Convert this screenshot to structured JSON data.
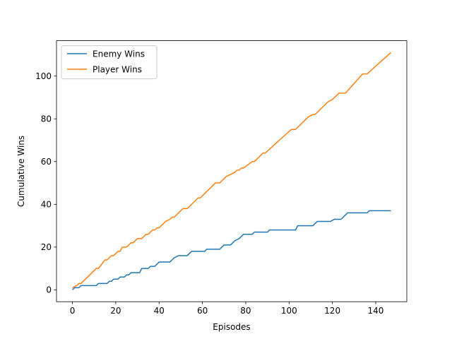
{
  "chart_data": {
    "type": "line",
    "xlabel": "Episodes",
    "ylabel": "Cumulative Wins",
    "xlim": [
      -7.35,
      154.35
    ],
    "ylim": [
      -5.55,
      116.55
    ],
    "xticks": [
      0,
      20,
      40,
      60,
      80,
      100,
      120,
      140
    ],
    "yticks": [
      0,
      20,
      40,
      60,
      80,
      100
    ],
    "grid": false,
    "legend_position": "top-left",
    "series": [
      {
        "name": "Enemy Wins",
        "color": "#1f77b4",
        "points": [
          [
            0,
            0
          ],
          [
            1,
            1
          ],
          [
            3,
            1
          ],
          [
            4,
            2
          ],
          [
            11,
            2
          ],
          [
            12,
            3
          ],
          [
            16,
            3
          ],
          [
            17,
            4
          ],
          [
            18,
            4
          ],
          [
            19,
            5
          ],
          [
            21,
            5
          ],
          [
            22,
            6
          ],
          [
            24,
            6
          ],
          [
            25,
            7
          ],
          [
            26,
            7
          ],
          [
            27,
            8
          ],
          [
            31,
            8
          ],
          [
            32,
            10
          ],
          [
            35,
            10
          ],
          [
            36,
            11
          ],
          [
            38,
            11
          ],
          [
            39,
            12
          ],
          [
            40,
            13
          ],
          [
            45,
            13
          ],
          [
            46,
            14
          ],
          [
            47,
            15
          ],
          [
            49,
            16
          ],
          [
            53,
            16
          ],
          [
            55,
            18
          ],
          [
            61,
            18
          ],
          [
            62,
            19
          ],
          [
            68,
            19
          ],
          [
            70,
            21
          ],
          [
            73,
            21
          ],
          [
            74,
            22
          ],
          [
            75,
            23
          ],
          [
            77,
            24
          ],
          [
            78,
            25
          ],
          [
            79,
            26
          ],
          [
            83,
            26
          ],
          [
            84,
            27
          ],
          [
            90,
            27
          ],
          [
            91,
            28
          ],
          [
            103,
            28
          ],
          [
            104,
            30
          ],
          [
            111,
            30
          ],
          [
            113,
            32
          ],
          [
            119,
            32
          ],
          [
            121,
            33
          ],
          [
            124,
            33
          ],
          [
            126,
            35
          ],
          [
            127,
            36
          ],
          [
            136,
            36
          ],
          [
            137,
            37
          ],
          [
            147,
            37
          ]
        ]
      },
      {
        "name": "Player Wins",
        "color": "#ff7f0e",
        "points": [
          [
            0,
            1
          ],
          [
            2,
            2
          ],
          [
            3,
            3
          ],
          [
            4,
            3
          ],
          [
            11,
            10
          ],
          [
            12,
            10
          ],
          [
            15,
            14
          ],
          [
            16,
            14
          ],
          [
            18,
            16
          ],
          [
            19,
            16
          ],
          [
            21,
            18
          ],
          [
            22,
            18
          ],
          [
            23,
            20
          ],
          [
            25,
            20
          ],
          [
            27,
            22
          ],
          [
            28,
            22
          ],
          [
            30,
            24
          ],
          [
            32,
            24
          ],
          [
            34,
            26
          ],
          [
            35,
            26
          ],
          [
            37,
            28
          ],
          [
            38,
            28
          ],
          [
            39,
            29
          ],
          [
            40,
            29
          ],
          [
            43,
            32
          ],
          [
            45,
            33
          ],
          [
            46,
            34
          ],
          [
            47,
            34
          ],
          [
            51,
            38
          ],
          [
            53,
            38
          ],
          [
            58,
            43
          ],
          [
            59,
            43
          ],
          [
            66,
            50
          ],
          [
            67,
            50
          ],
          [
            68,
            50
          ],
          [
            71,
            53
          ],
          [
            73,
            54
          ],
          [
            75,
            55
          ],
          [
            76,
            56
          ],
          [
            77,
            56
          ],
          [
            78,
            57
          ],
          [
            79,
            57
          ],
          [
            83,
            60
          ],
          [
            84,
            60
          ],
          [
            88,
            64
          ],
          [
            89,
            64
          ],
          [
            101,
            75
          ],
          [
            102,
            75
          ],
          [
            103,
            75
          ],
          [
            109,
            81
          ],
          [
            111,
            82
          ],
          [
            112,
            82
          ],
          [
            118,
            88
          ],
          [
            120,
            89
          ],
          [
            121,
            90
          ],
          [
            123,
            92
          ],
          [
            126,
            92
          ],
          [
            134,
            101
          ],
          [
            136,
            101
          ],
          [
            147,
            111
          ]
        ]
      }
    ]
  }
}
